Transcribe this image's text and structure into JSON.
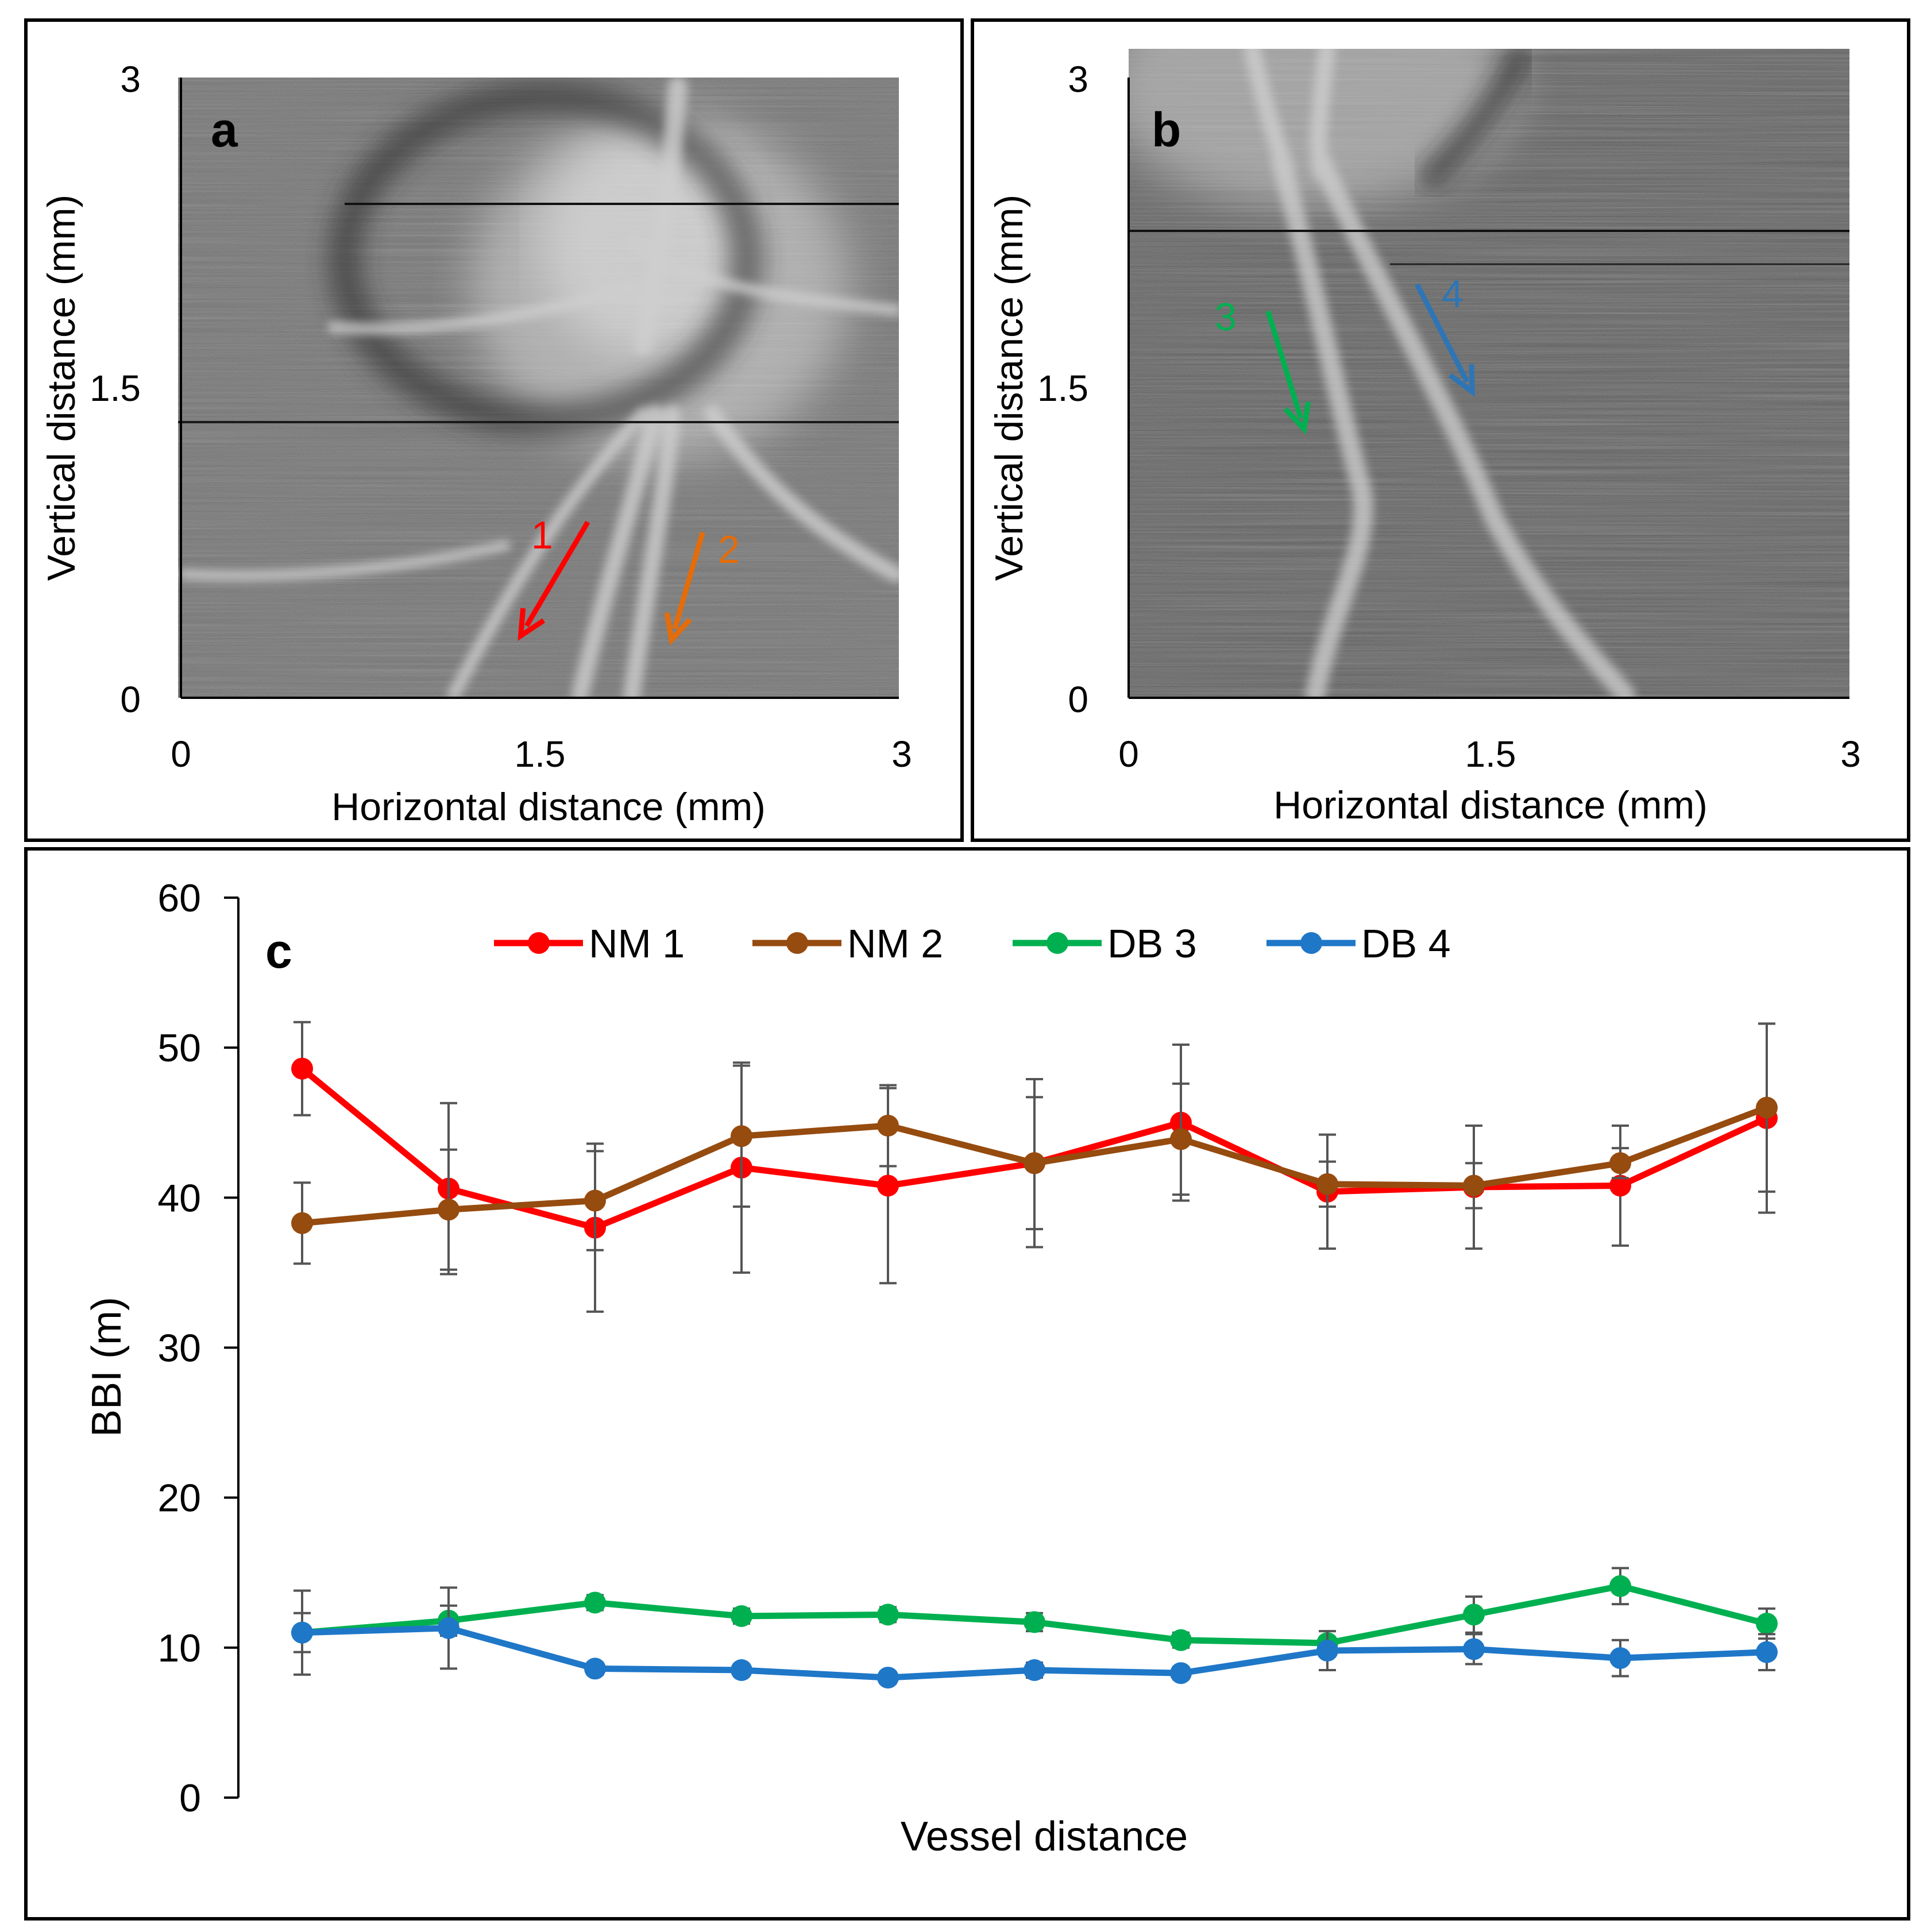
{
  "panel_a": {
    "letter": "a",
    "xlabel": "Horizontal distance (mm)",
    "ylabel": "Vertical distance (mm)",
    "x_ticks": [
      "0",
      "1.5",
      "3"
    ],
    "y_ticks": [
      "0",
      "1.5",
      "3"
    ],
    "arrows": [
      {
        "label": "1",
        "color": "#ff0000",
        "from": [
          1.7,
          0.85
        ],
        "to": [
          1.42,
          0.3
        ]
      },
      {
        "label": "2",
        "color": "#e46c0a",
        "from": [
          2.18,
          0.8
        ],
        "to": [
          2.05,
          0.28
        ]
      }
    ]
  },
  "panel_b": {
    "letter": "b",
    "xlabel": "Horizontal distance (mm)",
    "ylabel": "Vertical distance (mm)",
    "x_ticks": [
      "0",
      "1.5",
      "3"
    ],
    "y_ticks": [
      "0",
      "1.5",
      "3"
    ],
    "arrows": [
      {
        "label": "3",
        "color": "#00b050",
        "from": [
          0.58,
          1.87
        ],
        "to": [
          0.73,
          1.3
        ]
      },
      {
        "label": "4",
        "color": "#2e75b6",
        "from": [
          1.2,
          2.0
        ],
        "to": [
          1.43,
          1.48
        ]
      }
    ]
  },
  "chart_data": {
    "type": "line",
    "panel_letter": "c",
    "xlabel": "Vessel distance",
    "ylabel": "BBI (m)",
    "ylim": [
      0,
      60
    ],
    "y_ticks": [
      "0",
      "10",
      "20",
      "30",
      "40",
      "50",
      "60"
    ],
    "x": [
      1,
      2,
      3,
      4,
      5,
      6,
      7,
      8,
      9,
      10,
      11
    ],
    "legend_position": "top",
    "series": [
      {
        "name": "NM 1",
        "color": "#ff0000",
        "values": [
          48.6,
          40.6,
          38.0,
          42.0,
          40.8,
          42.3,
          45.0,
          40.4,
          40.7,
          40.8,
          45.3
        ],
        "errors": [
          3.1,
          5.7,
          5.6,
          7.0,
          6.5,
          5.6,
          5.2,
          3.8,
          4.1,
          4.0,
          6.3
        ]
      },
      {
        "name": "NM 2",
        "color": "#964b0f",
        "values": [
          38.3,
          39.2,
          39.8,
          44.1,
          44.8,
          42.3,
          43.9,
          40.9,
          40.8,
          42.3,
          46.0
        ],
        "errors": [
          2.7,
          4.0,
          3.3,
          4.7,
          2.7,
          4.4,
          3.7,
          1.5,
          1.5,
          1.0,
          5.6
        ]
      },
      {
        "name": "DB 3",
        "color": "#00b050",
        "values": [
          11.0,
          11.8,
          13.0,
          12.1,
          12.2,
          11.7,
          10.5,
          10.3,
          12.2,
          14.1,
          11.6
        ],
        "errors": [
          1.3,
          1.0,
          0.5,
          0.5,
          0.5,
          0.6,
          0.5,
          0.4,
          1.2,
          1.2,
          1.0
        ]
      },
      {
        "name": "DB 4",
        "color": "#1f77c8",
        "values": [
          11.0,
          11.3,
          8.6,
          8.5,
          8.0,
          8.5,
          8.3,
          9.8,
          9.9,
          9.3,
          9.7
        ],
        "errors": [
          2.8,
          2.7,
          0.4,
          0.4,
          0.4,
          0.5,
          0.4,
          1.3,
          1.0,
          1.2,
          1.2
        ]
      }
    ]
  }
}
